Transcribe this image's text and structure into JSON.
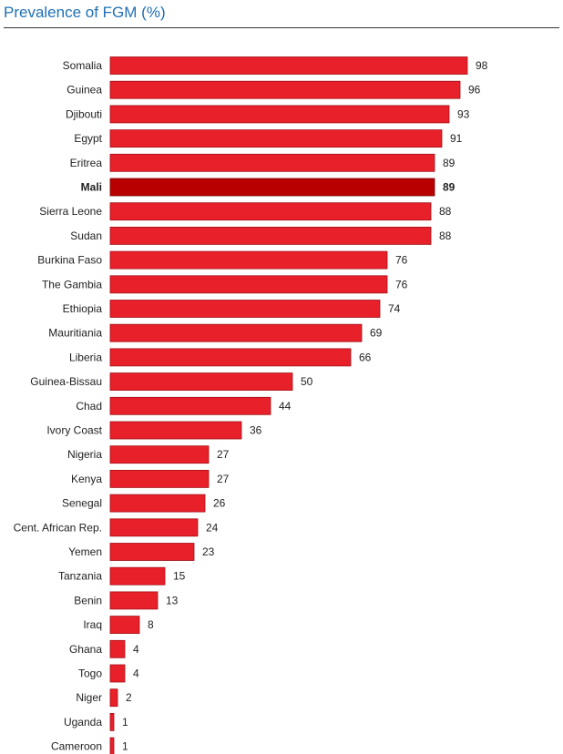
{
  "colors": {
    "title": "#1f6fb5",
    "bar": "#e8202a",
    "bar_stroke": "#a30f17",
    "highlight": "#b80000",
    "highlight_stroke": "#7a0000"
  },
  "chart_data": {
    "type": "bar",
    "orientation": "horizontal",
    "title": "Prevalence of FGM (%)",
    "xlabel": "",
    "ylabel": "",
    "xlim": [
      0,
      100
    ],
    "highlight": "Mali",
    "categories": [
      "Somalia",
      "Guinea",
      "Djibouti",
      "Egypt",
      "Eritrea",
      "Mali",
      "Sierra Leone",
      "Sudan",
      "Burkina Faso",
      "The Gambia",
      "Ethiopia",
      "Mauritiania",
      "Liberia",
      "Guinea-Bissau",
      "Chad",
      "Ivory Coast",
      "Nigeria",
      "Kenya",
      "Senegal",
      "Cent. African Rep.",
      "Yemen",
      "Tanzania",
      "Benin",
      "Iraq",
      "Ghana",
      "Togo",
      "Niger",
      "Uganda",
      "Cameroon"
    ],
    "values": [
      98,
      96,
      93,
      91,
      89,
      89,
      88,
      88,
      76,
      76,
      74,
      69,
      66,
      50,
      44,
      36,
      27,
      27,
      26,
      24,
      23,
      15,
      13,
      8,
      4,
      4,
      2,
      1,
      1
    ]
  }
}
